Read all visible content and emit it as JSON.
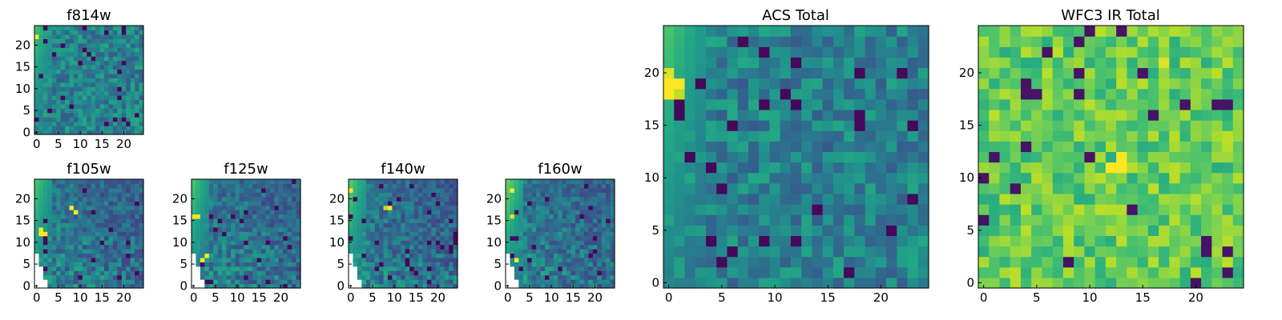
{
  "figure": "multi-panel heatmap figure",
  "chart_data": [
    {
      "type": "heatmap",
      "title": "f814w",
      "colormap": "viridis",
      "grid": [
        25,
        25
      ],
      "xlim": [
        0,
        24
      ],
      "ylim": [
        0,
        24
      ],
      "xticks": [
        0,
        5,
        10,
        15,
        20
      ],
      "yticks": [
        0,
        5,
        10,
        15,
        20
      ],
      "xtick_labels": [
        "0",
        "5",
        "10",
        "15",
        "20"
      ],
      "ytick_labels": [
        "0",
        "5",
        "10",
        "15",
        "20"
      ],
      "missing_region": "none",
      "features": [
        {
          "x": 0,
          "y": 22,
          "value": 1.0
        }
      ],
      "edge_gradient": {
        "side": "left",
        "value": 0.7,
        "width": 4
      }
    },
    {
      "type": "heatmap",
      "title": "f105w",
      "colormap": "viridis",
      "grid": [
        25,
        25
      ],
      "xlim": [
        0,
        24
      ],
      "ylim": [
        0,
        24
      ],
      "xticks": [
        0,
        5,
        10,
        15,
        20
      ],
      "yticks": [
        0,
        5,
        10,
        15,
        20
      ],
      "xtick_labels": [
        "0",
        "5",
        "10",
        "15",
        "20"
      ],
      "ytick_labels": [
        "0",
        "5",
        "10",
        "15",
        "20"
      ],
      "missing_region": "lower-left",
      "features": [
        {
          "x": 1,
          "y": 12,
          "value": 1.0
        },
        {
          "x": 2,
          "y": 12,
          "value": 1.0
        },
        {
          "x": 1,
          "y": 13,
          "value": 1.0
        },
        {
          "x": 8,
          "y": 18,
          "value": 1.0
        },
        {
          "x": 9,
          "y": 17,
          "value": 1.0
        }
      ],
      "edge_gradient": {
        "side": "left",
        "value": 0.72,
        "width": 4
      }
    },
    {
      "type": "heatmap",
      "title": "f125w",
      "colormap": "viridis",
      "grid": [
        25,
        25
      ],
      "xlim": [
        0,
        24
      ],
      "ylim": [
        0,
        24
      ],
      "xticks": [
        0,
        5,
        10,
        15,
        20
      ],
      "yticks": [
        0,
        5,
        10,
        15,
        20
      ],
      "xtick_labels": [
        "0",
        "5",
        "10",
        "15",
        "20"
      ],
      "ytick_labels": [
        "0",
        "5",
        "10",
        "15",
        "20"
      ],
      "missing_region": "lower-left",
      "features": [
        {
          "x": 0,
          "y": 16,
          "value": 1.0
        },
        {
          "x": 1,
          "y": 16,
          "value": 1.0
        },
        {
          "x": 2,
          "y": 6,
          "value": 1.0
        },
        {
          "x": 3,
          "y": 7,
          "value": 1.0
        }
      ],
      "edge_gradient": {
        "side": "left",
        "value": 0.72,
        "width": 4
      }
    },
    {
      "type": "heatmap",
      "title": "f140w",
      "colormap": "viridis",
      "grid": [
        25,
        25
      ],
      "xlim": [
        0,
        24
      ],
      "ylim": [
        0,
        24
      ],
      "xticks": [
        0,
        5,
        10,
        15,
        20
      ],
      "yticks": [
        0,
        5,
        10,
        15,
        20
      ],
      "xtick_labels": [
        "0",
        "5",
        "10",
        "15",
        "20"
      ],
      "ytick_labels": [
        "0",
        "5",
        "10",
        "15",
        "20"
      ],
      "missing_region": "lower-left",
      "features": [
        {
          "x": 0,
          "y": 22,
          "value": 1.0
        },
        {
          "x": 9,
          "y": 18,
          "value": 1.0
        },
        {
          "x": 8,
          "y": 18,
          "value": 0.9
        }
      ],
      "edge_gradient": {
        "side": "left",
        "value": 0.75,
        "width": 4
      }
    },
    {
      "type": "heatmap",
      "title": "f160w",
      "colormap": "viridis",
      "grid": [
        25,
        25
      ],
      "xlim": [
        0,
        24
      ],
      "ylim": [
        0,
        24
      ],
      "xticks": [
        0,
        5,
        10,
        15,
        20
      ],
      "yticks": [
        0,
        5,
        10,
        15,
        20
      ],
      "xtick_labels": [
        "0",
        "5",
        "10",
        "15",
        "20"
      ],
      "ytick_labels": [
        "0",
        "5",
        "10",
        "15",
        "20"
      ],
      "missing_region": "lower-left",
      "features": [
        {
          "x": 1,
          "y": 22,
          "value": 1.0
        },
        {
          "x": 2,
          "y": 6,
          "value": 1.0
        },
        {
          "x": 1,
          "y": 16,
          "value": 0.95
        }
      ],
      "edge_gradient": {
        "side": "left",
        "value": 0.78,
        "width": 4
      }
    },
    {
      "type": "heatmap",
      "title": "ACS Total",
      "colormap": "viridis",
      "grid": [
        25,
        25
      ],
      "xlim": [
        0,
        24
      ],
      "ylim": [
        0,
        24
      ],
      "xticks": [
        0,
        5,
        10,
        15,
        20
      ],
      "yticks": [
        0,
        5,
        10,
        15,
        20
      ],
      "xtick_labels": [
        "0",
        "5",
        "10",
        "15",
        "20"
      ],
      "ytick_labels": [
        "0",
        "5",
        "10",
        "15",
        "20"
      ],
      "missing_region": "none",
      "features": [
        {
          "x": 0,
          "y": 19,
          "value": 1.0
        },
        {
          "x": 1,
          "y": 19,
          "value": 1.0
        },
        {
          "x": 0,
          "y": 18,
          "value": 1.0
        },
        {
          "x": 0,
          "y": 20,
          "value": 0.95
        },
        {
          "x": 1,
          "y": 18,
          "value": 0.9
        }
      ],
      "edge_gradient": {
        "side": "left",
        "value": 0.72,
        "width": 4
      }
    },
    {
      "type": "heatmap",
      "title": "WFC3 IR Total",
      "colormap": "viridis",
      "grid": [
        25,
        25
      ],
      "xlim": [
        0,
        24
      ],
      "ylim": [
        0,
        24
      ],
      "xticks": [
        0,
        5,
        10,
        15,
        20
      ],
      "yticks": [
        0,
        5,
        10,
        15,
        20
      ],
      "xtick_labels": [
        "0",
        "5",
        "10",
        "15",
        "20"
      ],
      "ytick_labels": [
        "0",
        "5",
        "10",
        "15",
        "20"
      ],
      "missing_region": "none",
      "features": [
        {
          "x": 12,
          "y": 11,
          "value": 1.0
        },
        {
          "x": 13,
          "y": 11,
          "value": 1.0
        },
        {
          "x": 13,
          "y": 12,
          "value": 1.0
        },
        {
          "x": 17,
          "y": 21,
          "value": 0.95
        },
        {
          "x": 7,
          "y": 22,
          "value": 0.9
        }
      ],
      "edge_gradient": {
        "side": "none",
        "value": 0.0,
        "width": 0
      }
    }
  ]
}
